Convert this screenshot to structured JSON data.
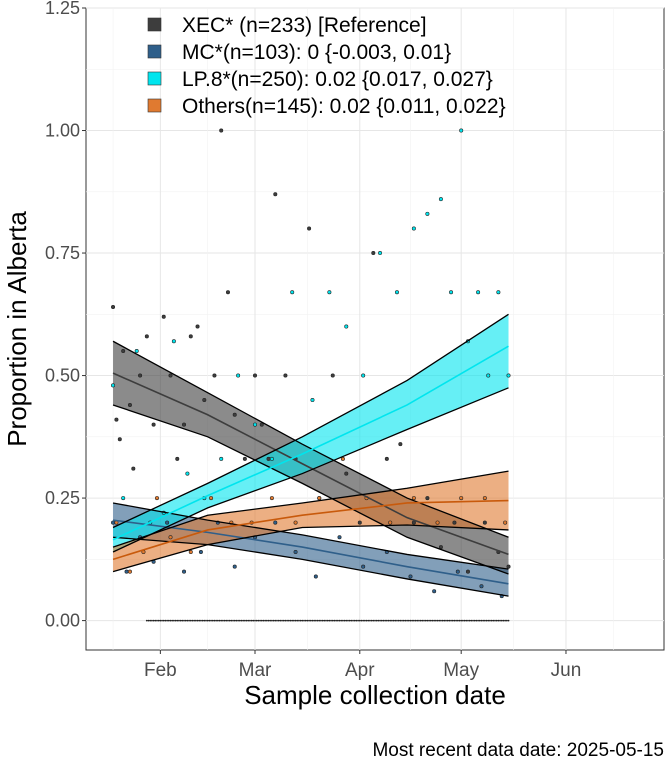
{
  "chart_data": {
    "type": "line",
    "xlabel": "Sample collection date",
    "ylabel": "Proportion in Alberta",
    "xlim": [
      "2025-01-10",
      "2025-06-30"
    ],
    "ylim": [
      -0.06,
      1.25
    ],
    "x_ticks": [
      {
        "date": "2025-02-01",
        "label": "Feb"
      },
      {
        "date": "2025-03-01",
        "label": "Mar"
      },
      {
        "date": "2025-04-01",
        "label": "Apr"
      },
      {
        "date": "2025-05-01",
        "label": "May"
      },
      {
        "date": "2025-06-01",
        "label": "Jun"
      }
    ],
    "y_ticks": [
      {
        "value": 0,
        "label": "0.00"
      },
      {
        "value": 0.25,
        "label": "0.25"
      },
      {
        "value": 0.5,
        "label": "0.50"
      },
      {
        "value": 0.75,
        "label": "0.75"
      },
      {
        "value": 1.0,
        "label": "1.00"
      },
      {
        "value": 1.25,
        "label": "1.25"
      }
    ],
    "grid": true,
    "legend_position": "top-left",
    "series": [
      {
        "name": "XEC* (n=233)  [Reference]",
        "color": "#3d3d3d",
        "x": [
          "2025-01-18",
          "2025-02-15",
          "2025-03-15",
          "2025-04-15",
          "2025-05-15"
        ],
        "fit": [
          0.505,
          0.42,
          0.32,
          0.21,
          0.135
        ],
        "lower": [
          0.44,
          0.375,
          0.28,
          0.17,
          0.095
        ],
        "upper": [
          0.57,
          0.465,
          0.36,
          0.25,
          0.17
        ],
        "points": [
          [
            "2025-01-18",
            0.64
          ],
          [
            "2025-01-19",
            0.41
          ],
          [
            "2025-01-20",
            0.37
          ],
          [
            "2025-01-21",
            0.55
          ],
          [
            "2025-01-23",
            0.44
          ],
          [
            "2025-01-24",
            0.31
          ],
          [
            "2025-01-26",
            0.5
          ],
          [
            "2025-01-28",
            0.58
          ],
          [
            "2025-01-30",
            0.4
          ],
          [
            "2025-02-02",
            0.62
          ],
          [
            "2025-02-04",
            0.5
          ],
          [
            "2025-02-06",
            0.33
          ],
          [
            "2025-02-08",
            0.4
          ],
          [
            "2025-02-10",
            0.58
          ],
          [
            "2025-02-12",
            0.6
          ],
          [
            "2025-02-14",
            0.45
          ],
          [
            "2025-02-17",
            0.5
          ],
          [
            "2025-02-19",
            1.0
          ],
          [
            "2025-02-21",
            0.67
          ],
          [
            "2025-02-23",
            0.42
          ],
          [
            "2025-02-26",
            0.33
          ],
          [
            "2025-03-01",
            0.5
          ],
          [
            "2025-03-03",
            0.4
          ],
          [
            "2025-03-05",
            0.33
          ],
          [
            "2025-03-07",
            0.87
          ],
          [
            "2025-03-10",
            0.5
          ],
          [
            "2025-03-13",
            0.33
          ],
          [
            "2025-03-17",
            0.8
          ],
          [
            "2025-03-20",
            0.25
          ],
          [
            "2025-03-24",
            0.5
          ],
          [
            "2025-03-28",
            0.3
          ],
          [
            "2025-04-01",
            0.2
          ],
          [
            "2025-04-05",
            0.75
          ],
          [
            "2025-04-09",
            0.33
          ],
          [
            "2025-04-13",
            0.36
          ],
          [
            "2025-04-17",
            0.2
          ],
          [
            "2025-04-21",
            0.25
          ],
          [
            "2025-04-25",
            0.15
          ],
          [
            "2025-04-29",
            0.2
          ],
          [
            "2025-05-03",
            0.1
          ],
          [
            "2025-05-08",
            0.2
          ],
          [
            "2025-05-12",
            0.14
          ],
          [
            "2025-05-15",
            0.11
          ]
        ]
      },
      {
        "name": "MC*(n=103): 0 {-0.003, 0.01}",
        "color": "#2f5f8a",
        "x": [
          "2025-01-18",
          "2025-02-15",
          "2025-03-15",
          "2025-04-15",
          "2025-05-15"
        ],
        "fit": [
          0.205,
          0.18,
          0.15,
          0.11,
          0.075
        ],
        "lower": [
          0.17,
          0.155,
          0.125,
          0.085,
          0.05
        ],
        "upper": [
          0.24,
          0.205,
          0.175,
          0.135,
          0.105
        ],
        "points": [
          [
            "2025-01-18",
            0.2
          ],
          [
            "2025-01-22",
            0.1
          ],
          [
            "2025-01-26",
            0.17
          ],
          [
            "2025-01-30",
            0.12
          ],
          [
            "2025-02-03",
            0.2
          ],
          [
            "2025-02-08",
            0.1
          ],
          [
            "2025-02-13",
            0.14
          ],
          [
            "2025-02-18",
            0.2
          ],
          [
            "2025-02-23",
            0.11
          ],
          [
            "2025-03-01",
            0.17
          ],
          [
            "2025-03-07",
            0.2
          ],
          [
            "2025-03-13",
            0.14
          ],
          [
            "2025-03-19",
            0.09
          ],
          [
            "2025-03-26",
            0.17
          ],
          [
            "2025-04-02",
            0.11
          ],
          [
            "2025-04-09",
            0.14
          ],
          [
            "2025-04-16",
            0.09
          ],
          [
            "2025-04-23",
            0.06
          ],
          [
            "2025-04-30",
            0.1
          ],
          [
            "2025-05-07",
            0.07
          ],
          [
            "2025-05-13",
            0.05
          ]
        ]
      },
      {
        "name": "LP.8*(n=250): 0.02 {0.017, 0.027}",
        "color": "#00e5ee",
        "x": [
          "2025-01-18",
          "2025-02-15",
          "2025-03-15",
          "2025-04-15",
          "2025-05-15"
        ],
        "fit": [
          0.165,
          0.255,
          0.34,
          0.44,
          0.56
        ],
        "lower": [
          0.14,
          0.23,
          0.3,
          0.39,
          0.475
        ],
        "upper": [
          0.19,
          0.28,
          0.375,
          0.49,
          0.625
        ],
        "points": [
          [
            "2025-01-18",
            0.48
          ],
          [
            "2025-01-21",
            0.25
          ],
          [
            "2025-01-25",
            0.55
          ],
          [
            "2025-01-29",
            0.2
          ],
          [
            "2025-02-02",
            0.22
          ],
          [
            "2025-02-05",
            0.57
          ],
          [
            "2025-02-09",
            0.3
          ],
          [
            "2025-02-14",
            0.25
          ],
          [
            "2025-02-19",
            0.33
          ],
          [
            "2025-02-24",
            0.5
          ],
          [
            "2025-03-01",
            0.4
          ],
          [
            "2025-03-06",
            0.33
          ],
          [
            "2025-03-12",
            0.67
          ],
          [
            "2025-03-18",
            0.45
          ],
          [
            "2025-03-23",
            0.67
          ],
          [
            "2025-03-28",
            0.6
          ],
          [
            "2025-04-02",
            0.5
          ],
          [
            "2025-04-07",
            0.75
          ],
          [
            "2025-04-12",
            0.67
          ],
          [
            "2025-04-17",
            0.8
          ],
          [
            "2025-04-21",
            0.83
          ],
          [
            "2025-04-25",
            0.86
          ],
          [
            "2025-04-28",
            0.67
          ],
          [
            "2025-05-01",
            1.0
          ],
          [
            "2025-05-03",
            0.57
          ],
          [
            "2025-05-06",
            0.67
          ],
          [
            "2025-05-09",
            0.5
          ],
          [
            "2025-05-12",
            0.67
          ],
          [
            "2025-05-15",
            0.5
          ]
        ]
      },
      {
        "name": "Others(n=145): 0.02 {0.011, 0.022}",
        "color": "#e07a30",
        "line_color": "#c85a0c",
        "x": [
          "2025-01-18",
          "2025-02-15",
          "2025-03-15",
          "2025-04-15",
          "2025-05-15"
        ],
        "fit": [
          0.125,
          0.185,
          0.215,
          0.24,
          0.245
        ],
        "lower": [
          0.1,
          0.155,
          0.19,
          0.195,
          0.185
        ],
        "upper": [
          0.15,
          0.215,
          0.24,
          0.27,
          0.305
        ],
        "points": [
          [
            "2025-01-19",
            0.2
          ],
          [
            "2025-01-23",
            0.1
          ],
          [
            "2025-01-27",
            0.14
          ],
          [
            "2025-01-31",
            0.25
          ],
          [
            "2025-02-04",
            0.17
          ],
          [
            "2025-02-10",
            0.14
          ],
          [
            "2025-02-16",
            0.25
          ],
          [
            "2025-02-22",
            0.2
          ],
          [
            "2025-02-28",
            0.2
          ],
          [
            "2025-03-06",
            0.25
          ],
          [
            "2025-03-13",
            0.2
          ],
          [
            "2025-03-20",
            0.25
          ],
          [
            "2025-03-27",
            0.33
          ],
          [
            "2025-04-03",
            0.25
          ],
          [
            "2025-04-10",
            0.2
          ],
          [
            "2025-04-17",
            0.25
          ],
          [
            "2025-04-24",
            0.2
          ],
          [
            "2025-05-01",
            0.25
          ],
          [
            "2025-05-08",
            0.25
          ],
          [
            "2025-05-14",
            0.2
          ]
        ]
      }
    ],
    "zero_points": {
      "start": "2025-01-28",
      "end": "2025-05-15",
      "value": 0,
      "color": "#222222"
    }
  },
  "caption": "Most recent data date: 2025-05-15"
}
